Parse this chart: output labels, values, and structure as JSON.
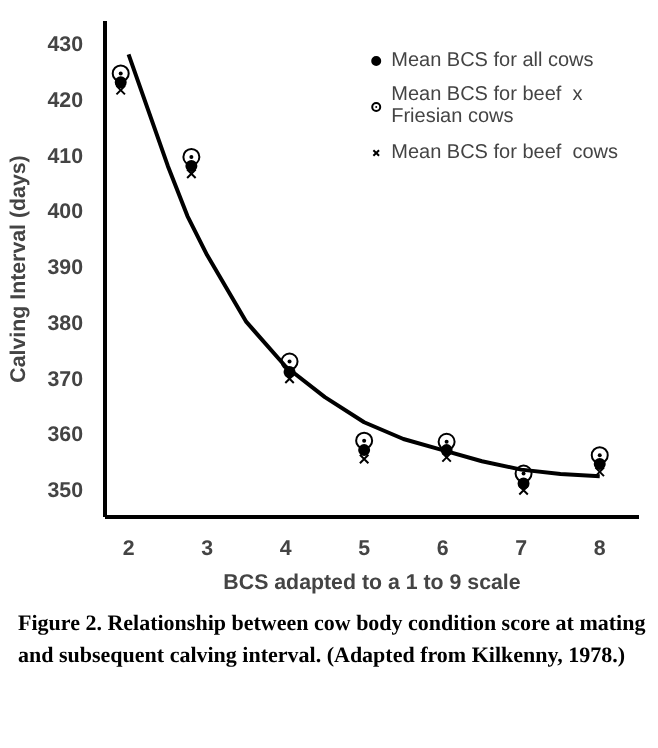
{
  "chart_data": {
    "type": "scatter",
    "xlabel": "BCS adapted to a 1 to 9 scale",
    "ylabel": "Calving Interval (days)",
    "xlim": [
      1.7,
      8.5
    ],
    "ylim": [
      345,
      434
    ],
    "xticks": [
      2,
      3,
      4,
      5,
      6,
      7,
      8
    ],
    "yticks": [
      350,
      360,
      370,
      380,
      390,
      400,
      410,
      420,
      430
    ],
    "grid": false,
    "legend": "top right",
    "series": [
      {
        "name": "Mean BCS for all cows",
        "color": "#000000",
        "marker": "circle",
        "x": [
          1.9,
          2.8,
          4.05,
          5.0,
          6.05,
          7.03,
          8.0
        ],
        "values": [
          423,
          408,
          371,
          357,
          357,
          351,
          354.5
        ]
      },
      {
        "name": "Mean BCS for beef  x Friesian cows",
        "color": "#000000",
        "marker": "circle_dot",
        "x": [
          1.9,
          2.8,
          4.05,
          5.0,
          6.05,
          7.03,
          8.0
        ],
        "values": [
          424.6,
          409.6,
          372.9,
          358.7,
          358.5,
          352.8,
          356.1
        ]
      },
      {
        "name": "Mean BCS for beef  cows",
        "color": "#000000",
        "marker": "x",
        "x": [
          1.9,
          2.8,
          4.05,
          5.0,
          6.05,
          7.03,
          8.0
        ],
        "values": [
          421.6,
          406.6,
          369.8,
          355.4,
          355.7,
          349.8,
          353.1
        ]
      },
      {
        "type": "line",
        "color": "#000000",
        "x": [
          2,
          2.25,
          2.5,
          2.75,
          3,
          3.5,
          4,
          4.5,
          5,
          5.5,
          6,
          6.5,
          7,
          7.5,
          8
        ],
        "values": [
          428,
          418,
          408,
          399,
          392,
          380,
          372,
          366.5,
          362,
          359,
          357,
          355,
          353.5,
          352.7,
          352.3
        ]
      }
    ],
    "annotations": [
      "Figure 2. Relationship between cow body condition score at mating and subsequent calving interval. (Adapted from Kilkenny, 1978.)"
    ]
  }
}
